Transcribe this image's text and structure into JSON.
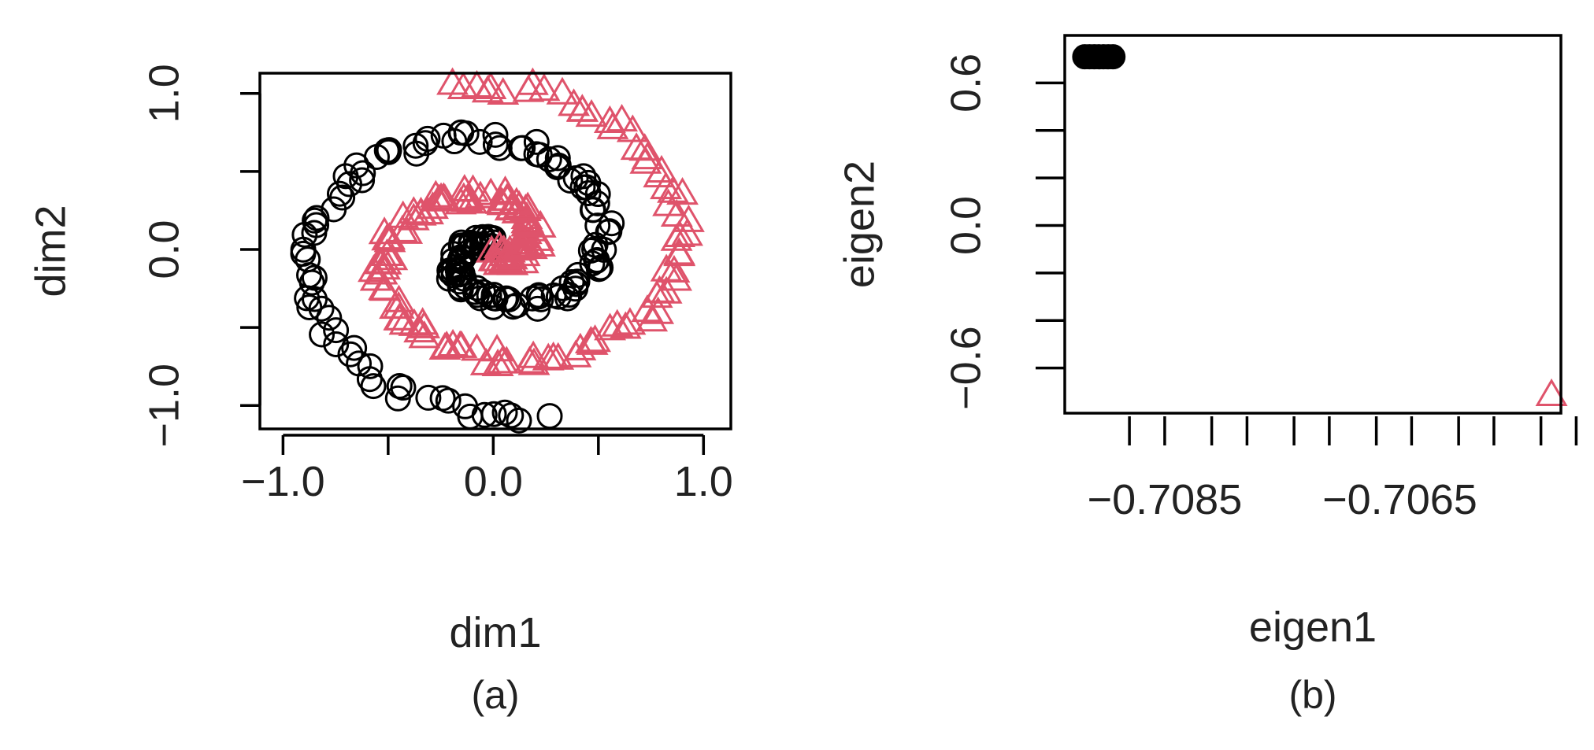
{
  "colors": {
    "class1": "#000000",
    "class2": "#df536b"
  },
  "panels": {
    "a": {
      "caption": "(a)"
    },
    "b": {
      "caption": "(b)"
    }
  },
  "chart_data": [
    {
      "type": "scatter",
      "xlabel": "dim1",
      "ylabel": "dim2",
      "xlim": [
        -1.11,
        1.13
      ],
      "ylim": [
        -1.15,
        1.13
      ],
      "x_ticks": [
        -1.0,
        -0.5,
        0.0,
        0.5,
        1.0
      ],
      "x_tick_labels": [
        "-1.0",
        "",
        "0.0",
        "",
        "1.0"
      ],
      "y_ticks": [
        -1.0,
        -0.5,
        0.0,
        0.5,
        1.0
      ],
      "y_tick_labels": [
        "-1.0",
        "",
        "0.0",
        "",
        "1.0"
      ],
      "grid": false,
      "series": [
        {
          "marker": "circle-open",
          "color": "#000000",
          "spiral": {
            "r_start": 0.02,
            "r_end": 1.08,
            "theta_start": 2.0,
            "theta_end": 11.2,
            "points": 170,
            "jitter": 0.05
          }
        },
        {
          "marker": "triangle-open",
          "color": "#df536b",
          "spiral": {
            "r_start": 0.02,
            "r_end": 1.08,
            "theta_start": 5.14,
            "theta_end": 14.34,
            "points": 170,
            "jitter": 0.05
          }
        }
      ]
    },
    {
      "type": "scatter",
      "xlabel": "eigen1",
      "ylabel": "eigen2",
      "xlim": [
        -0.70935,
        -0.70513
      ],
      "ylim": [
        -0.79,
        0.8
      ],
      "x_ticks": [
        -0.7085,
        -0.7078,
        -0.7071,
        -0.7064,
        -0.7057,
        -0.705
      ],
      "x_ticks_unlabeled": [
        -0.7088,
        -0.7081,
        -0.7074,
        -0.7067,
        -0.706,
        -0.7053
      ],
      "x_tick_labels": [
        "-0.7085",
        "-0.7065"
      ],
      "x_tick_label_values": [
        -0.7085,
        -0.7065
      ],
      "y_ticks": [
        -0.6,
        -0.4,
        -0.2,
        0.0,
        0.2,
        0.4,
        0.6
      ],
      "y_tick_labels": [
        "-0.6",
        "",
        "",
        "0.0",
        "",
        "",
        "0.6"
      ],
      "grid": false,
      "series": [
        {
          "marker": "circle-filled",
          "color": "#000000",
          "x": [
            -0.70918,
            -0.70914,
            -0.7091,
            -0.70906,
            -0.70902,
            -0.70898,
            -0.70894
          ],
          "y": [
            0.71,
            0.71,
            0.71,
            0.71,
            0.71,
            0.71,
            0.71
          ]
        },
        {
          "marker": "triangle-open",
          "color": "#df536b",
          "x": [
            -0.70521
          ],
          "y": [
            -0.71
          ]
        }
      ]
    }
  ]
}
